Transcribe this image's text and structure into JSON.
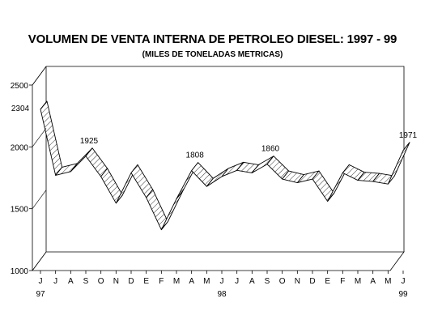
{
  "chart_data": {
    "type": "area",
    "title": "VOLUMEN DE VENTA INTERNA DE PETROLEO DIESEL: 1997 - 99",
    "subtitle": "(MILES DE TONELADAS METRICAS)",
    "xlabel": "",
    "ylabel": "",
    "ylim": [
      1000,
      2500
    ],
    "y_ticks": [
      1000,
      1500,
      2000,
      2500
    ],
    "categories": [
      "J",
      "J",
      "A",
      "S",
      "O",
      "N",
      "D",
      "E",
      "F",
      "M",
      "A",
      "M",
      "J",
      "J",
      "A",
      "S",
      "O",
      "N",
      "D",
      "E",
      "F",
      "M",
      "A",
      "M",
      "J"
    ],
    "year_labels": [
      {
        "index": 0,
        "text": "97"
      },
      {
        "index": 12,
        "text": "98"
      },
      {
        "index": 24,
        "text": "99"
      }
    ],
    "values": [
      2304,
      1770,
      1800,
      1925,
      1760,
      1545,
      1790,
      1590,
      1330,
      1580,
      1808,
      1680,
      1760,
      1810,
      1790,
      1860,
      1740,
      1710,
      1740,
      1560,
      1790,
      1730,
      1720,
      1700,
      1971
    ],
    "data_labels": [
      {
        "index": 0,
        "text": "2304"
      },
      {
        "index": 3,
        "text": "1925"
      },
      {
        "index": 10,
        "text": "1808"
      },
      {
        "index": 15,
        "text": "1860"
      },
      {
        "index": 24,
        "text": "1971"
      }
    ],
    "grid": false,
    "legend": "none",
    "style": "3d-ribbon-hatched"
  }
}
